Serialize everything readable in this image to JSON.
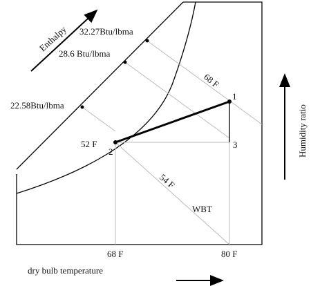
{
  "labels": {
    "enthalpy": "Enthalpy",
    "enthalpy_1": "32.27Btu/lbma",
    "enthalpy_2": "28.6 Btu/lbma",
    "enthalpy_3": "22.58Btu/lbma",
    "wb_68": "68 F",
    "wb_52": "52 F",
    "wb_54": "54 F",
    "wbt": "WBT",
    "db_68": "68 F",
    "db_80": "80 F",
    "x_axis": "dry bulb temperature",
    "y_axis": "Humidity ratio"
  },
  "points": [
    "1",
    "2",
    "3"
  ]
}
